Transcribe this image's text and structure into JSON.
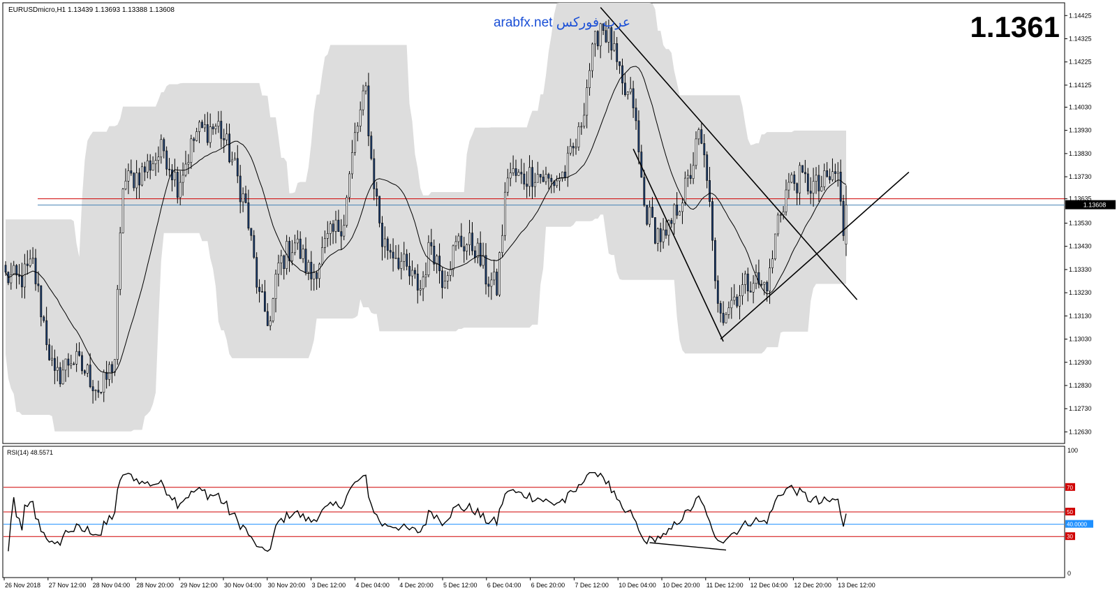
{
  "window": {
    "header": "EURUSDmicro,H1  1.13439 1.13693 1.13388 1.13608",
    "watermark": "arabfx.net عرب فوركس",
    "big_price": "1.1361",
    "current_price_label": "1.13608"
  },
  "colors": {
    "background": "#ffffff",
    "candle_body": "#1c3d6e",
    "envelope_fill": "#dddddd",
    "moving_average": "#000000",
    "hline_red": "#d00000",
    "hline_blue": "#1e90ff",
    "watermark": "#1a4fd6",
    "trendline": "#000000"
  },
  "chart_data": [
    {
      "type": "candlestick",
      "symbol": "EURUSDmicro",
      "timeframe": "H1",
      "ohlc_last": {
        "open": 1.13439,
        "high": 1.13693,
        "low": 1.13388,
        "close": 1.13608
      },
      "ylim": [
        1.1258,
        1.1448
      ],
      "y_ticks": [
        "1.14425",
        "1.14325",
        "1.14225",
        "1.14125",
        "1.14030",
        "1.13930",
        "1.13830",
        "1.13730",
        "1.13635",
        "1.13530",
        "1.13430",
        "1.13330",
        "1.13230",
        "1.13130",
        "1.13030",
        "1.12930",
        "1.12830",
        "1.12730",
        "1.12630"
      ],
      "x_ticks": [
        "26 Nov 2018",
        "27 Nov 12:00",
        "28 Nov 04:00",
        "28 Nov 20:00",
        "29 Nov 12:00",
        "30 Nov 04:00",
        "30 Nov 20:00",
        "3 Dec 12:00",
        "4 Dec 04:00",
        "4 Dec 20:00",
        "5 Dec 12:00",
        "6 Dec 04:00",
        "6 Dec 20:00",
        "7 Dec 12:00",
        "10 Dec 04:00",
        "10 Dec 20:00",
        "11 Dec 12:00",
        "12 Dec 04:00",
        "12 Dec 20:00",
        "13 Dec 12:00"
      ],
      "horizontal_lines": [
        {
          "price": 1.13635,
          "color": "red"
        },
        {
          "price": 1.13608,
          "color": "steelblue"
        }
      ],
      "close_anchors": [
        [
          0,
          1.133
        ],
        [
          5,
          1.1328
        ],
        [
          10,
          1.1335
        ],
        [
          14,
          1.131
        ],
        [
          18,
          1.1285
        ],
        [
          24,
          1.1295
        ],
        [
          30,
          1.1288
        ],
        [
          35,
          1.128
        ],
        [
          40,
          1.1295
        ],
        [
          43,
          1.137
        ],
        [
          50,
          1.1375
        ],
        [
          58,
          1.1385
        ],
        [
          63,
          1.137
        ],
        [
          70,
          1.1392
        ],
        [
          78,
          1.1395
        ],
        [
          83,
          1.138
        ],
        [
          88,
          1.136
        ],
        [
          93,
          1.132
        ],
        [
          97,
          1.131
        ],
        [
          100,
          1.1335
        ],
        [
          106,
          1.1345
        ],
        [
          112,
          1.133
        ],
        [
          118,
          1.1345
        ],
        [
          124,
          1.1355
        ],
        [
          128,
          1.139
        ],
        [
          132,
          1.141
        ],
        [
          134,
          1.138
        ],
        [
          138,
          1.1345
        ],
        [
          143,
          1.134
        ],
        [
          148,
          1.133
        ],
        [
          152,
          1.1325
        ],
        [
          156,
          1.1345
        ],
        [
          160,
          1.133
        ],
        [
          166,
          1.1345
        ],
        [
          172,
          1.1343
        ],
        [
          176,
          1.133
        ],
        [
          180,
          1.1325
        ],
        [
          184,
          1.1375
        ],
        [
          189,
          1.1372
        ],
        [
          194,
          1.1375
        ],
        [
          200,
          1.137
        ],
        [
          205,
          1.1375
        ],
        [
          210,
          1.139
        ],
        [
          214,
          1.142
        ],
        [
          218,
          1.144
        ],
        [
          222,
          1.143
        ],
        [
          226,
          1.141
        ],
        [
          230,
          1.1405
        ],
        [
          234,
          1.136
        ],
        [
          238,
          1.135
        ],
        [
          242,
          1.1345
        ],
        [
          246,
          1.136
        ],
        [
          250,
          1.137
        ],
        [
          254,
          1.139
        ],
        [
          257,
          1.1375
        ],
        [
          260,
          1.1325
        ],
        [
          263,
          1.1315
        ],
        [
          266,
          1.132
        ],
        [
          270,
          1.1325
        ],
        [
          274,
          1.133
        ],
        [
          277,
          1.1325
        ],
        [
          280,
          1.133
        ],
        [
          283,
          1.1355
        ],
        [
          287,
          1.137
        ],
        [
          291,
          1.1372
        ],
        [
          294,
          1.137
        ],
        [
          298,
          1.1368
        ],
        [
          302,
          1.1372
        ],
        [
          305,
          1.1375
        ],
        [
          307,
          1.1345
        ],
        [
          308,
          1.1361
        ]
      ]
    },
    {
      "type": "line",
      "indicator": "RSI(14)",
      "label": "RSI(14) 48.5571",
      "current_value": 48.5571,
      "ylim": [
        0,
        100
      ],
      "y_ticks": [
        "100",
        "70",
        "50",
        "40.0000",
        "30",
        "0"
      ],
      "levels": [
        {
          "value": 70,
          "color": "red"
        },
        {
          "value": 50,
          "color": "red"
        },
        {
          "value": 40,
          "color": "blue",
          "label": "40.0000"
        },
        {
          "value": 30,
          "color": "red"
        }
      ]
    }
  ]
}
